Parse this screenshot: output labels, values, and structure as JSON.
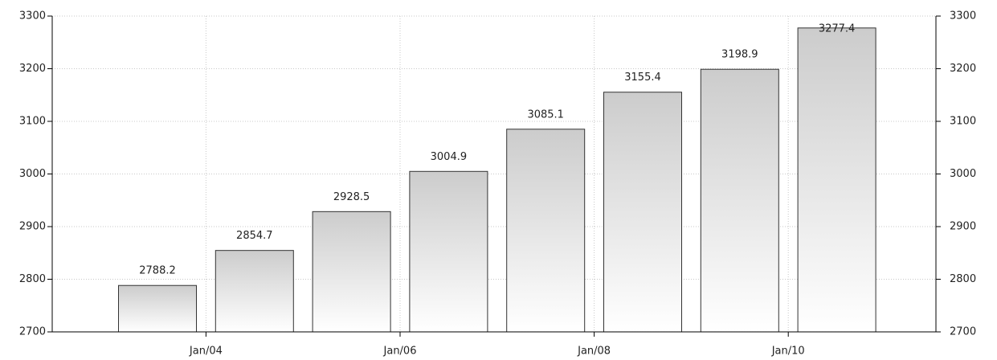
{
  "chart_data": {
    "type": "bar",
    "categories": [
      null,
      null,
      null,
      null,
      null,
      null,
      null,
      null
    ],
    "values": [
      2788.2,
      2854.7,
      2928.5,
      3004.9,
      3085.1,
      3155.4,
      3198.9,
      3277.4
    ],
    "xticks": [
      {
        "value": 0.5,
        "label": "Jan/04"
      },
      {
        "value": 2.5,
        "label": "Jan/06"
      },
      {
        "value": 4.5,
        "label": "Jan/08"
      },
      {
        "value": 6.5,
        "label": "Jan/10"
      }
    ],
    "ylim": [
      2700,
      3300
    ],
    "yticks": [
      2700,
      2800,
      2900,
      3000,
      3100,
      3200,
      3300
    ],
    "y2lim": [
      2700,
      3300
    ],
    "y2ticks": [
      2700,
      2800,
      2900,
      3000,
      3100,
      3200,
      3300
    ],
    "grid": true,
    "color": "#cccccc"
  }
}
